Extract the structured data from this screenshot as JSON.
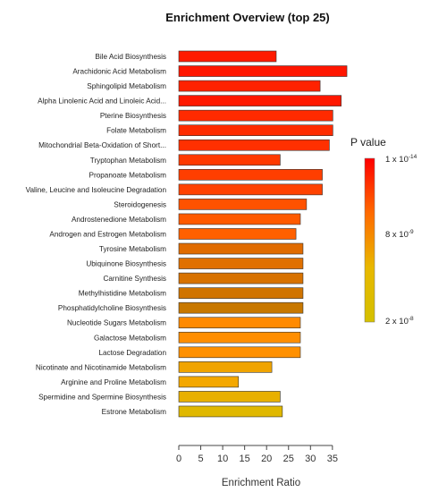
{
  "chart_data": {
    "type": "bar",
    "orientation": "horizontal",
    "title": "Enrichment Overview (top 25)",
    "xlabel": "Enrichment Ratio",
    "ylabel": "",
    "xlim": [
      0,
      38
    ],
    "xticks": [
      0,
      5,
      10,
      15,
      20,
      25,
      30,
      35
    ],
    "grid": false,
    "categories": [
      "Bile Acid Biosynthesis",
      "Arachidonic Acid Metabolism",
      "Sphingolipid Metabolism",
      "Alpha Linolenic Acid and Linoleic Acid...",
      "Pterine Biosynthesis",
      "Folate Metabolism",
      "Mitochondrial Beta-Oxidation of Short...",
      "Tryptophan Metabolism",
      "Propanoate Metabolism",
      "Valine, Leucine and Isoleucine Degradation",
      "Steroidogenesis",
      "Androstenedione Metabolism",
      "Androgen and Estrogen Metabolism",
      "Tyrosine Metabolism",
      "Ubiquinone Biosynthesis",
      "Carnitine Synthesis",
      "Methylhistidine Metabolism",
      "Phosphatidylcholine Biosynthesis",
      "Nucleotide Sugars Metabolism",
      "Galactose Metabolism",
      "Lactose Degradation",
      "Nicotinate and Nicotinamide Metabolism",
      "Arginine and Proline Metabolism",
      "Spermidine and Spermine Biosynthesis",
      "Estrone Metabolism"
    ],
    "values": [
      22.2,
      38.3,
      32.2,
      37.0,
      35.1,
      35.1,
      34.3,
      23.1,
      32.7,
      32.7,
      29.1,
      27.7,
      26.7,
      28.3,
      28.3,
      28.3,
      28.3,
      28.3,
      27.7,
      27.7,
      27.7,
      21.2,
      13.6,
      23.1,
      23.6
    ],
    "colors": [
      "#ff1a00",
      "#ff1600",
      "#ff2200",
      "#ff1800",
      "#ff2a00",
      "#ff2c00",
      "#ff3000",
      "#ff3a00",
      "#ff3e00",
      "#ff4200",
      "#ff5200",
      "#ff5a00",
      "#ff6000",
      "#e06b00",
      "#e07000",
      "#d87200",
      "#d07400",
      "#c87800",
      "#ff8a00",
      "#ff8e00",
      "#ff9000",
      "#f0a400",
      "#f4a800",
      "#e8b000",
      "#e0b800"
    ],
    "legend": {
      "title": "P value",
      "placement": "right",
      "colors": [
        "#ff0000",
        "#ff6a00",
        "#e8b800",
        "#d4c000"
      ],
      "labels": [
        {
          "base": "1 x 10",
          "exp": "-14"
        },
        {
          "base": "8 x 10",
          "exp": "-9"
        },
        {
          "base": "2 x 10",
          "exp": "-8"
        }
      ]
    }
  }
}
